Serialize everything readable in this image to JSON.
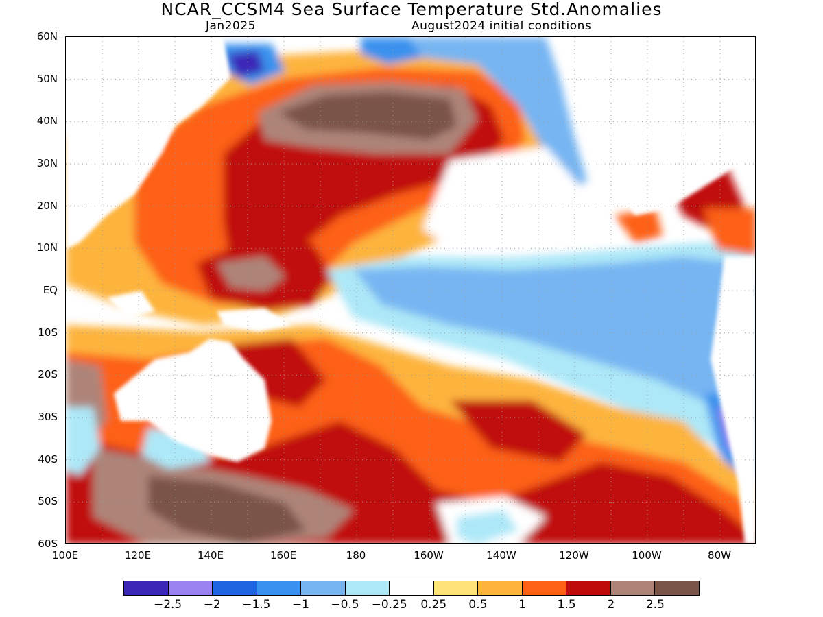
{
  "header": {
    "title": "NCAR_CCSM4 Sea Surface Temperature Std.Anomalies",
    "month": "Jan2025",
    "initial_conditions": "August2024 initial conditions"
  },
  "map": {
    "projection": "cylindrical equidistant",
    "lon_range": [
      100,
      290
    ],
    "lat_range": [
      -60,
      60
    ],
    "grid": "dotted",
    "lat_labels": [
      "60N",
      "50N",
      "40N",
      "30N",
      "20N",
      "10N",
      "EQ",
      "10S",
      "20S",
      "30S",
      "40S",
      "50S",
      "60S"
    ],
    "lon_labels": [
      "100E",
      "120E",
      "140E",
      "160E",
      "180",
      "160W",
      "140W",
      "120W",
      "100W",
      "80W"
    ],
    "land_color": "#ffffff",
    "coastline_color": "#000000"
  },
  "colorbar": {
    "colors": [
      "#3a27b8",
      "#9a82f0",
      "#1e64e0",
      "#3a92ee",
      "#76b5f2",
      "#ade8f8",
      "#ffffff",
      "#ffe27a",
      "#fdb43c",
      "#fd6114",
      "#c00b0b",
      "#ae8478",
      "#7a5348"
    ],
    "labels": [
      "−2.5",
      "−2",
      "−1.5",
      "−1",
      "−0.5",
      "−0.25",
      "0.25",
      "0.5",
      "1",
      "1.5",
      "2",
      "2.5"
    ]
  }
}
